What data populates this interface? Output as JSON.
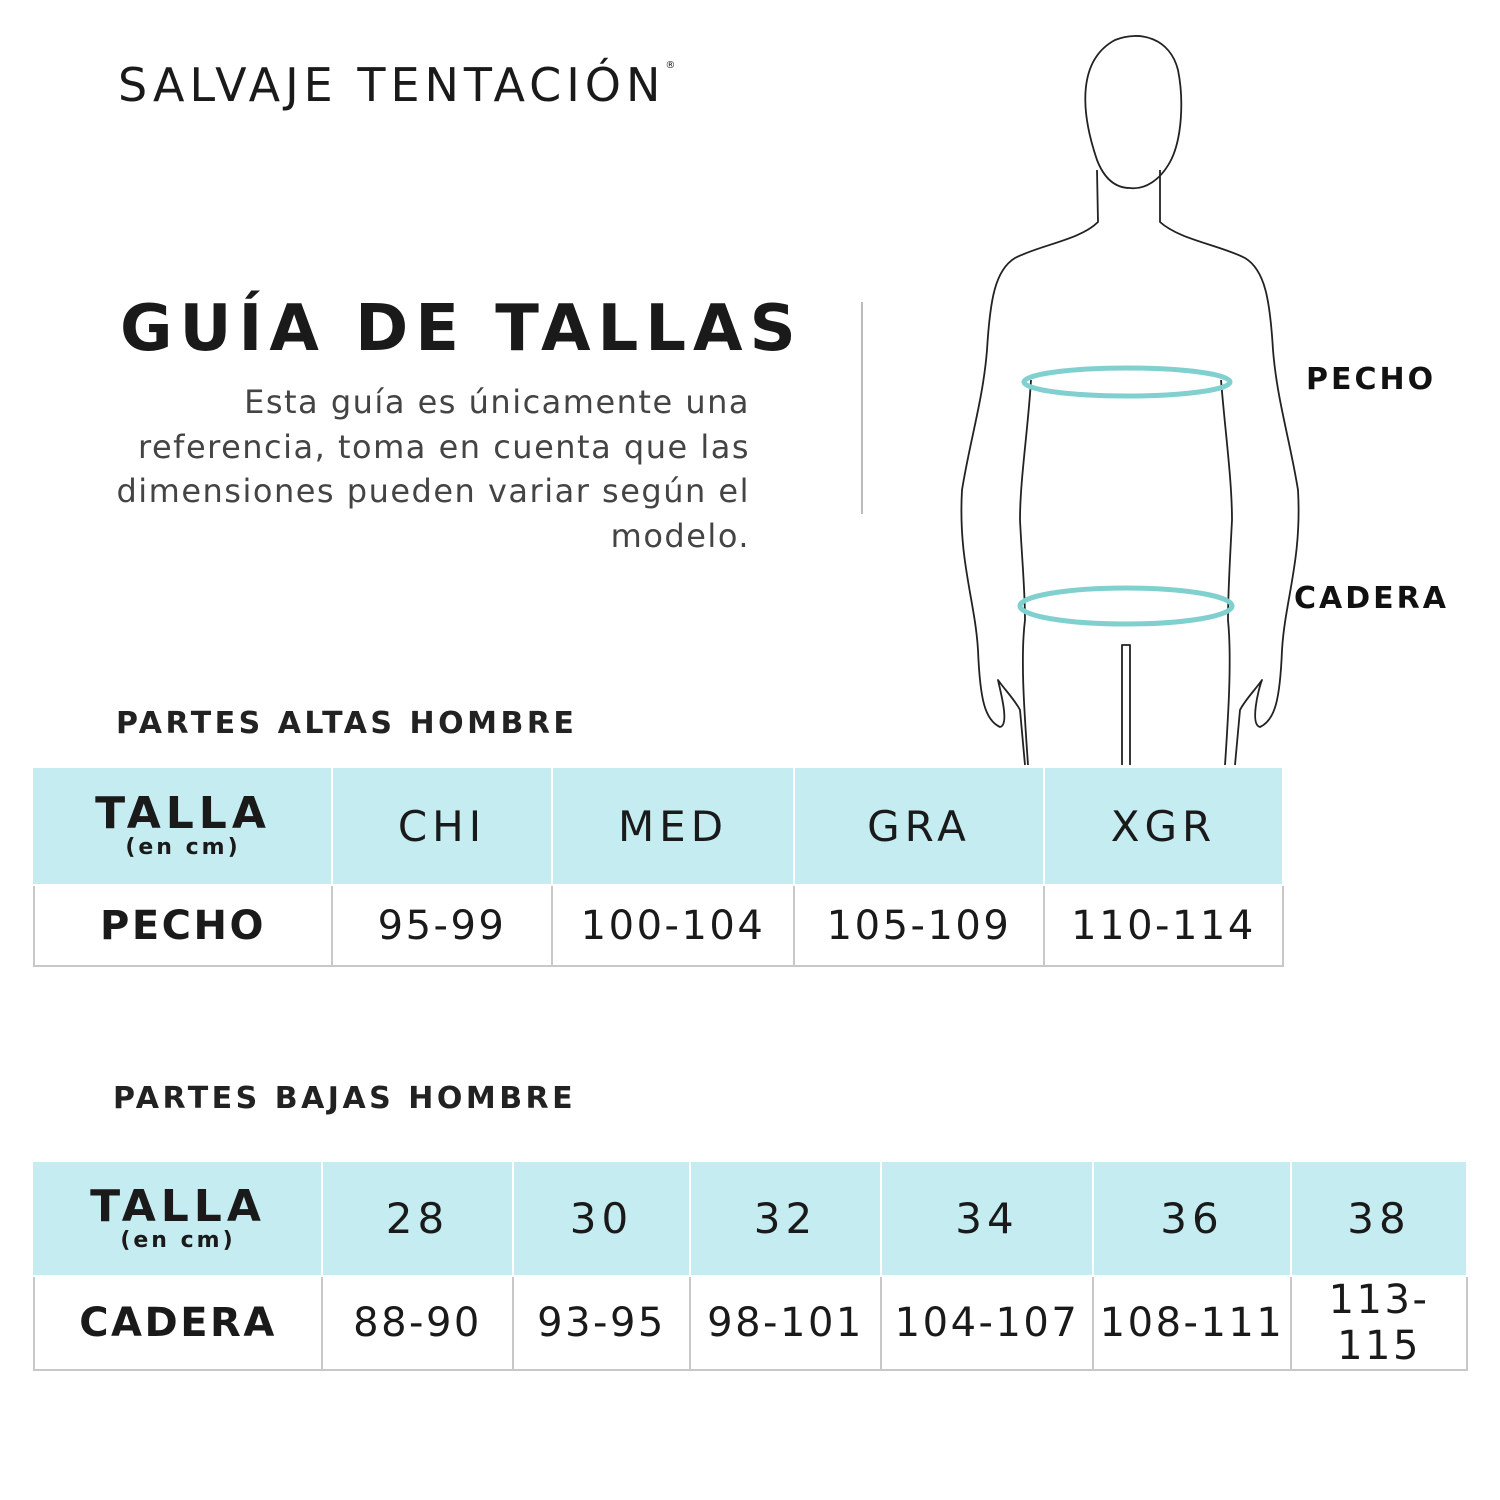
{
  "brand": {
    "name": "SALVAJE TENTACIÓN",
    "mark": "®"
  },
  "title": "GUÍA DE TALLAS",
  "description": "Esta guía es únicamente una referencia, toma en cuenta que las dimensiones pueden variar según el modelo.",
  "figure": {
    "labels": {
      "chest": "PECHO",
      "hip": "CADERA"
    },
    "ring_color": "#7fd0cf"
  },
  "colors": {
    "header_bg": "#c4ecf1"
  },
  "tables": {
    "upper": {
      "title": "PARTES ALTAS HOMBRE",
      "header_label": "TALLA",
      "unit": "(en cm)",
      "sizes": [
        "CHI",
        "MED",
        "GRA",
        "XGR"
      ],
      "row_label": "PECHO",
      "values": [
        "95-99",
        "100-104",
        "105-109",
        "110-114"
      ]
    },
    "lower": {
      "title": "PARTES BAJAS HOMBRE",
      "header_label": "TALLA",
      "unit": "(en cm)",
      "sizes": [
        "28",
        "30",
        "32",
        "34",
        "36",
        "38"
      ],
      "row_label": "CADERA",
      "values": [
        "88-90",
        "93-95",
        "98-101",
        "104-107",
        "108-111",
        "113-115"
      ]
    }
  }
}
